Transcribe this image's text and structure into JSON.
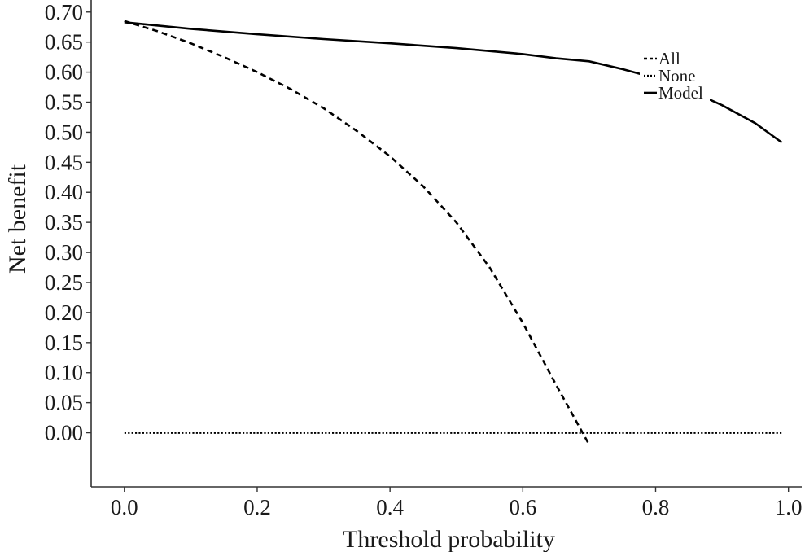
{
  "chart_data": {
    "type": "line",
    "title": "",
    "xlabel": "Threshold probability",
    "ylabel": "Net benefit",
    "xlim": [
      -0.05,
      1.02
    ],
    "ylim": [
      -0.09,
      0.72
    ],
    "x_ticks": [
      "0.0",
      "0.2",
      "0.4",
      "0.6",
      "0.8",
      "1.0"
    ],
    "x_tick_values": [
      0.0,
      0.2,
      0.4,
      0.6,
      0.8,
      1.0
    ],
    "y_ticks": [
      "0.00",
      "0.05",
      "0.10",
      "0.15",
      "0.20",
      "0.25",
      "0.30",
      "0.35",
      "0.40",
      "0.45",
      "0.50",
      "0.55",
      "0.60",
      "0.65",
      "0.70"
    ],
    "y_tick_values": [
      0.0,
      0.05,
      0.1,
      0.15,
      0.2,
      0.25,
      0.3,
      0.35,
      0.4,
      0.45,
      0.5,
      0.55,
      0.6,
      0.65,
      0.7
    ],
    "grid": false,
    "legend_position": "top-right",
    "series": [
      {
        "name": "All",
        "style": "dashed",
        "color": "#000000",
        "x": [
          0.0,
          0.05,
          0.1,
          0.15,
          0.2,
          0.25,
          0.3,
          0.35,
          0.4,
          0.45,
          0.5,
          0.55,
          0.6,
          0.65,
          0.7
        ],
        "y": [
          0.685,
          0.668,
          0.648,
          0.625,
          0.6,
          0.572,
          0.54,
          0.502,
          0.46,
          0.41,
          0.35,
          0.275,
          0.183,
          0.08,
          -0.02
        ]
      },
      {
        "name": "None",
        "style": "dotted",
        "color": "#000000",
        "x": [
          0.0,
          0.99
        ],
        "y": [
          0.0,
          0.0
        ]
      },
      {
        "name": "Model",
        "style": "solid",
        "color": "#000000",
        "x": [
          0.0,
          0.1,
          0.2,
          0.3,
          0.4,
          0.5,
          0.6,
          0.65,
          0.7,
          0.75,
          0.8,
          0.85,
          0.9,
          0.95,
          0.99
        ],
        "y": [
          0.683,
          0.672,
          0.663,
          0.655,
          0.648,
          0.64,
          0.63,
          0.623,
          0.618,
          0.605,
          0.59,
          0.57,
          0.545,
          0.515,
          0.483
        ]
      }
    ]
  }
}
